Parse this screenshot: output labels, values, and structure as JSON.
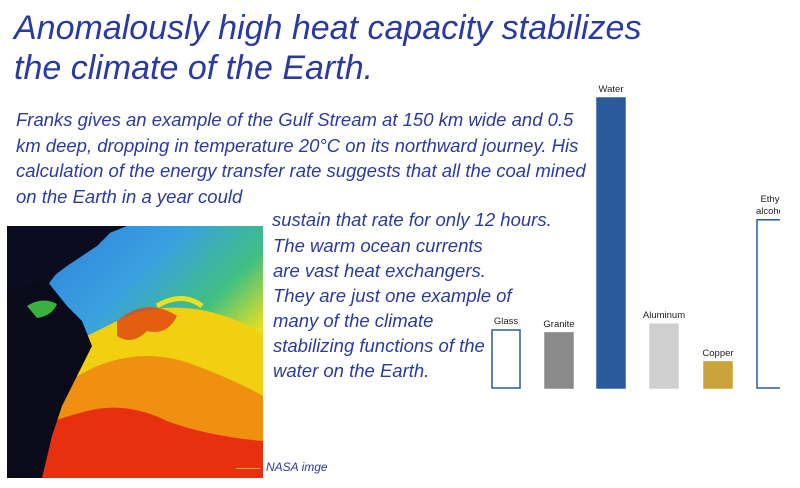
{
  "title": "Anomalously high heat capacity stabilizes\nthe climate of the Earth.",
  "para1": "Franks gives an example of the Gulf Stream at 150 km wide and 0.5 km deep, dropping in temperature 20°C on its northward journey. His calculation of the energy transfer rate suggests that all the coal mined on the Earth in a year could",
  "para1_end": "sustain that rate for only 12 hours.",
  "para2": "The warm ocean currents are vast heat exchangers. They are just one example of many of the climate stabilizing functions of the water on the Earth.",
  "image_credit": "NASA imge",
  "chart_data": {
    "type": "bar",
    "categories": [
      "Glass",
      "Granite",
      "Water",
      "Aluminum",
      "Copper",
      "Ethyl\nalcohol"
    ],
    "values": [
      0.2,
      0.19,
      1.0,
      0.22,
      0.09,
      0.58
    ],
    "series_style": [
      {
        "fill": "#ffffff",
        "stroke": "#2a5a9a"
      },
      {
        "fill": "#8a8a8a",
        "stroke": "#8a8a8a"
      },
      {
        "fill": "#2a5a9a",
        "stroke": "#2a5a9a"
      },
      {
        "fill": "#cfcfcf",
        "stroke": "#cfcfcf"
      },
      {
        "fill": "#c9a23a",
        "stroke": "#c9a23a"
      },
      {
        "fill": "#ffffff",
        "stroke": "#2a5a9a"
      }
    ],
    "title": "",
    "xlabel": "",
    "ylabel": "",
    "ylim": [
      0,
      1
    ],
    "grid": false,
    "legend": "none"
  }
}
